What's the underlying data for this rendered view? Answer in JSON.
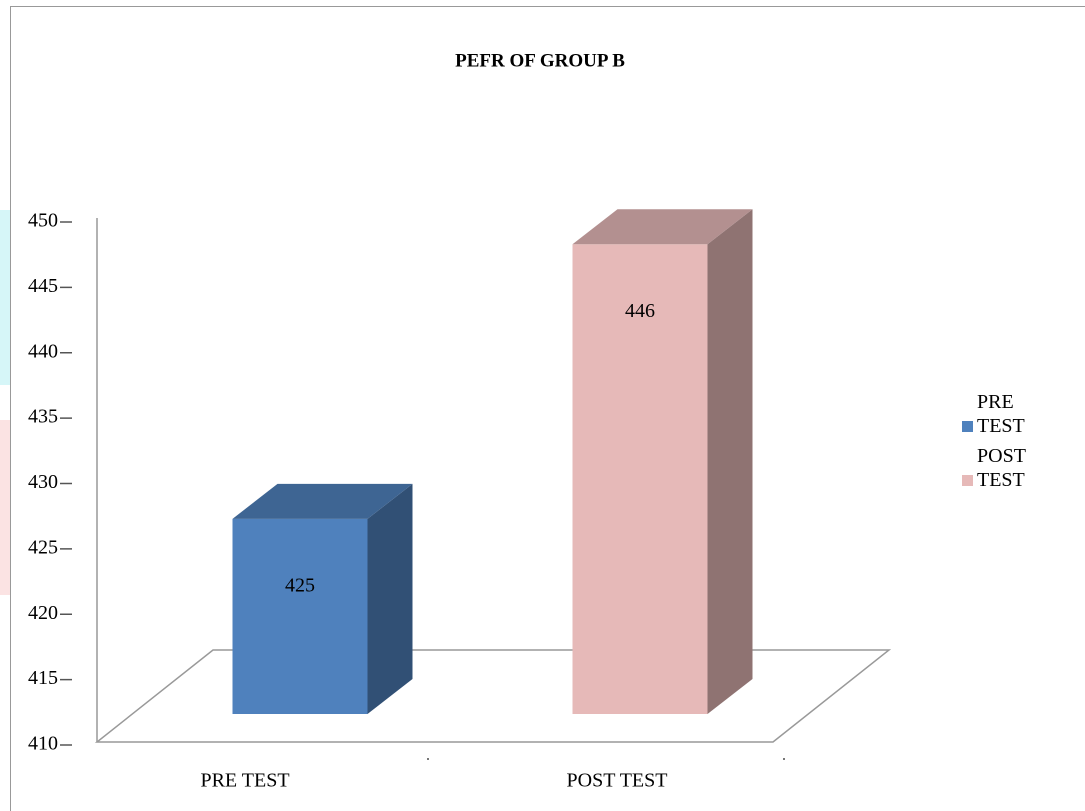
{
  "chart_data": {
    "type": "bar3d",
    "title": "PEFR OF GROUP B",
    "categories": [
      "PRE TEST",
      "POST TEST"
    ],
    "values": [
      425,
      446
    ],
    "colors": [
      "#4f81bd",
      "#e6b9b8"
    ],
    "ylim": [
      410,
      450
    ],
    "yticks": [
      410,
      415,
      420,
      425,
      430,
      435,
      440,
      445,
      450
    ],
    "legend": "right"
  }
}
